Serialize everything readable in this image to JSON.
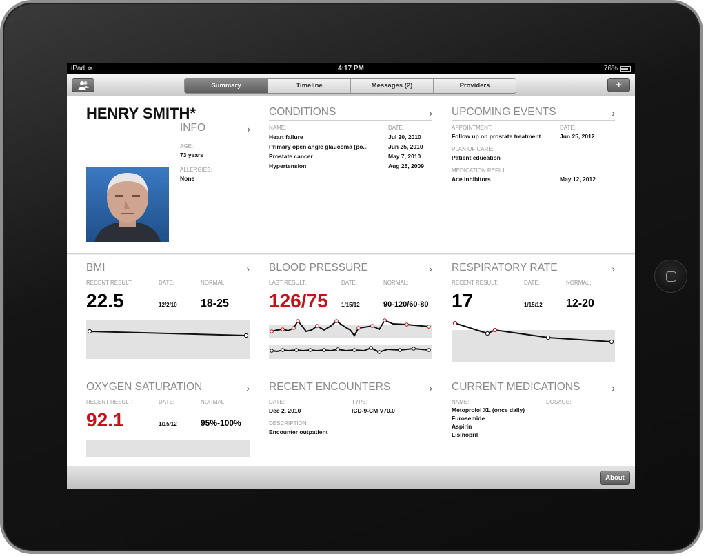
{
  "status_bar": {
    "carrier": "iPad",
    "time": "4:17 PM",
    "battery": "76%"
  },
  "toolbar": {
    "tabs": [
      "Summary",
      "Timeline",
      "Messages (2)",
      "Providers"
    ],
    "active_tab": "Summary",
    "add_label": "+"
  },
  "patient": {
    "name": "HENRY SMITH*"
  },
  "info": {
    "title": "INFO",
    "age_label": "AGE:",
    "age": "73 years",
    "allergies_label": "ALLERGIES:",
    "allergies": "None"
  },
  "conditions": {
    "title": "CONDITIONS",
    "name_header": "NAME:",
    "date_header": "DATE:",
    "rows": [
      {
        "name": "Heart failure",
        "date": "Jul 20, 2010"
      },
      {
        "name": "Primary open angle glaucoma (po...",
        "date": "Jun 25, 2010"
      },
      {
        "name": "Prostate cancer",
        "date": "May 7, 2010"
      },
      {
        "name": "Hypertension",
        "date": "Aug 25, 2009"
      }
    ]
  },
  "events": {
    "title": "UPCOMING EVENTS",
    "appointment_label": "APPOINTMENT:",
    "date_label": "DATE:",
    "appointment": "Follow up on prostate treatment",
    "appointment_date": "Jun 25, 2012",
    "plan_label": "PLAN OF CARE:",
    "plan": "Patient education",
    "refill_label": "MEDICATION REFILL:",
    "refill": "Ace inhibitors",
    "refill_date": "May 12, 2012"
  },
  "bmi": {
    "title": "BMI",
    "result_label": "RECENT RESULT:",
    "date_label": "DATE:",
    "normal_label": "NORMAL:",
    "value": "22.5",
    "date": "12/2/10",
    "normal": "18-25",
    "series": [
      22.6,
      22.5
    ]
  },
  "blood_pressure": {
    "title": "BLOOD PRESSURE",
    "result_label": "LAST RESULT:",
    "date_label": "DATE:",
    "normal_label": "NORMAL:",
    "value": "126/75",
    "date": "1/15/12",
    "normal": "90-120/60-80"
  },
  "respiratory": {
    "title": "RESPIRATORY RATE",
    "result_label": "RECENT RESULT:",
    "date_label": "DATE:",
    "normal_label": "NORMAL:",
    "value": "17",
    "date": "1/15/12",
    "normal": "12-20"
  },
  "oxygen": {
    "title": "OXYGEN SATURATION",
    "result_label": "RECENT RESULT:",
    "date_label": "DATE:",
    "normal_label": "NORMAL:",
    "value": "92.1",
    "date": "1/15/12",
    "normal": "95%-100%"
  },
  "encounters": {
    "title": "RECENT ENCOUNTERS",
    "date_label": "DATE:",
    "type_label": "TYPE:",
    "date": "Dec 2, 2010",
    "type": "ICD-9-CM V70.0",
    "desc_label": "DESCRIPTION:",
    "description": "Encounter outpatient"
  },
  "medications": {
    "title": "CURRENT MEDICATIONS",
    "name_label": "NAME:",
    "dosage_label": "DOSAGE:",
    "items": [
      "Metoprolol XL (once daily)",
      "Furosemide",
      "Aspirin",
      "Lisinopril"
    ]
  },
  "footer": {
    "about_label": "About"
  },
  "colors": {
    "accent_red": "#c4121a",
    "band_gray": "#e2e2e2"
  }
}
